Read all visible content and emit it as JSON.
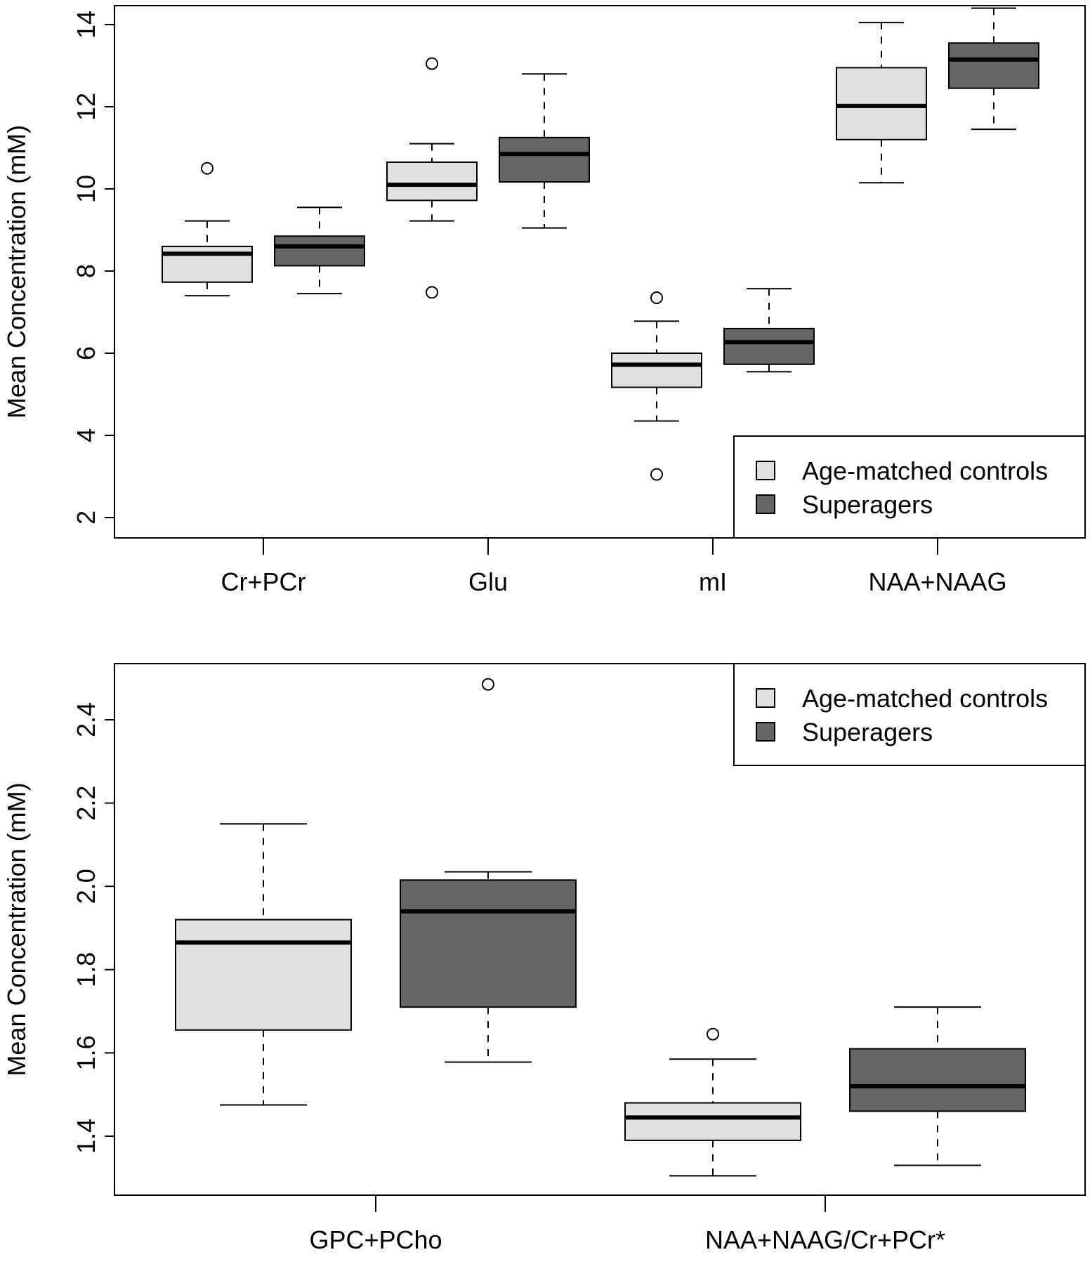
{
  "chart_data": [
    {
      "type": "boxplot",
      "title": "",
      "xlabel": "",
      "ylabel": "Mean Concentration (mM)",
      "ylim": [
        1.5,
        14.5
      ],
      "yticks": [
        2,
        4,
        6,
        8,
        10,
        12,
        14
      ],
      "categories": [
        "Cr+PCr",
        "Glu",
        "mI",
        "NAA+NAAG"
      ],
      "legend": {
        "position": "bottom-right",
        "entries": [
          "Age-matched controls",
          "Superagers"
        ]
      },
      "series": [
        {
          "name": "Age-matched controls",
          "color": "#e0e0e0",
          "boxes": [
            {
              "whisker_low": 7.4,
              "q1": 7.73,
              "median": 8.42,
              "q3": 8.6,
              "whisker_high": 9.22,
              "outliers": [
                10.5
              ]
            },
            {
              "whisker_low": 9.22,
              "q1": 9.72,
              "median": 10.1,
              "q3": 10.65,
              "whisker_high": 11.1,
              "outliers": [
                13.05,
                7.48
              ]
            },
            {
              "whisker_low": 4.35,
              "q1": 5.17,
              "median": 5.72,
              "q3": 6.0,
              "whisker_high": 6.78,
              "outliers": [
                7.35,
                3.05
              ]
            },
            {
              "whisker_low": 10.15,
              "q1": 11.2,
              "median": 12.02,
              "q3": 12.95,
              "whisker_high": 14.05,
              "outliers": []
            }
          ]
        },
        {
          "name": "Superagers",
          "color": "#666666",
          "boxes": [
            {
              "whisker_low": 7.45,
              "q1": 8.13,
              "median": 8.6,
              "q3": 8.85,
              "whisker_high": 9.55,
              "outliers": []
            },
            {
              "whisker_low": 9.05,
              "q1": 10.17,
              "median": 10.85,
              "q3": 11.25,
              "whisker_high": 12.8,
              "outliers": []
            },
            {
              "whisker_low": 5.55,
              "q1": 5.73,
              "median": 6.27,
              "q3": 6.6,
              "whisker_high": 7.57,
              "outliers": []
            },
            {
              "whisker_low": 11.45,
              "q1": 12.45,
              "median": 13.15,
              "q3": 13.55,
              "whisker_high": 14.4,
              "outliers": []
            }
          ]
        }
      ]
    },
    {
      "type": "boxplot",
      "title": "",
      "xlabel": "",
      "ylabel": "Mean Concentration (mM)",
      "ylim": [
        1.25,
        2.55
      ],
      "yticks": [
        1.4,
        1.6,
        1.8,
        2.0,
        2.2,
        2.4
      ],
      "ytick_labels": [
        "1.4",
        "1.6",
        "1.8",
        "2.0",
        "2.2",
        "2.4"
      ],
      "categories": [
        "GPC+PCho",
        "NAA+NAAG/Cr+PCr*"
      ],
      "legend": {
        "position": "top-right",
        "entries": [
          "Age-matched controls",
          "Superagers"
        ]
      },
      "series": [
        {
          "name": "Age-matched controls",
          "color": "#e0e0e0",
          "boxes": [
            {
              "whisker_low": 1.475,
              "q1": 1.655,
              "median": 1.865,
              "q3": 1.92,
              "whisker_high": 2.15,
              "outliers": []
            },
            {
              "whisker_low": 1.305,
              "q1": 1.39,
              "median": 1.445,
              "q3": 1.48,
              "whisker_high": 1.585,
              "outliers": [
                1.645
              ]
            }
          ]
        },
        {
          "name": "Superagers",
          "color": "#666666",
          "boxes": [
            {
              "whisker_low": 1.578,
              "q1": 1.71,
              "median": 1.94,
              "q3": 2.015,
              "whisker_high": 2.035,
              "outliers": [
                2.485
              ]
            },
            {
              "whisker_low": 1.33,
              "q1": 1.46,
              "median": 1.52,
              "q3": 1.61,
              "whisker_high": 1.71,
              "outliers": []
            }
          ]
        }
      ]
    }
  ]
}
